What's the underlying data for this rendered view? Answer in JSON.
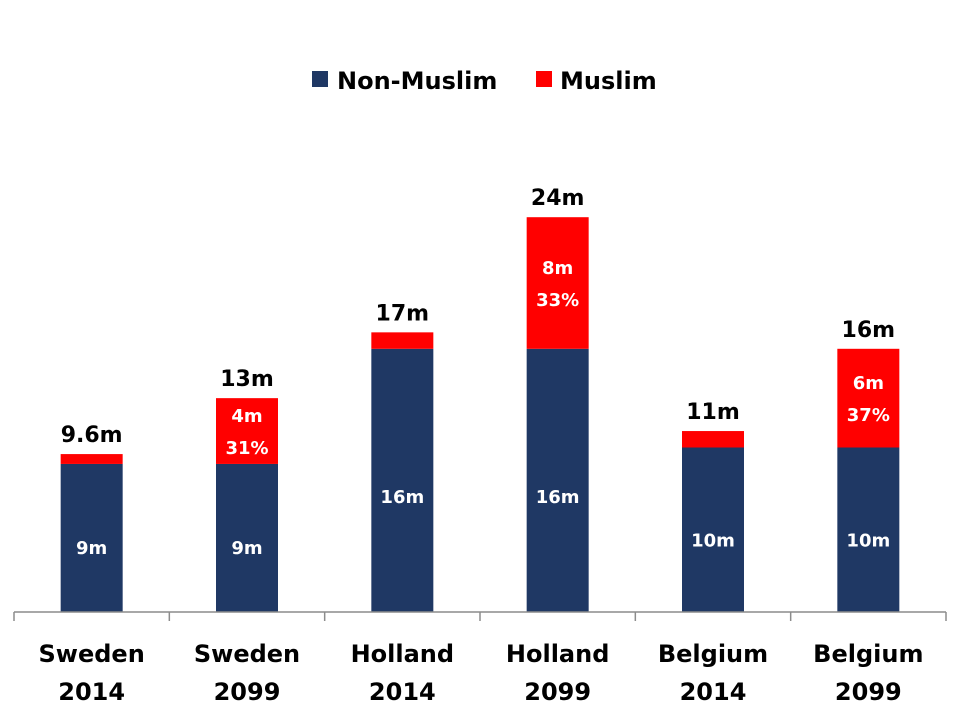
{
  "chart_data": {
    "type": "bar",
    "stacked": true,
    "categories": [
      [
        "Sweden",
        "2014"
      ],
      [
        "Sweden",
        "2099"
      ],
      [
        "Holland",
        "2014"
      ],
      [
        "Holland",
        "2099"
      ],
      [
        "Belgium",
        "2014"
      ],
      [
        "Belgium",
        "2099"
      ]
    ],
    "series": [
      {
        "name": "Non-Muslim",
        "color": "#1f3864",
        "values": [
          9,
          9,
          16,
          16,
          10,
          10
        ],
        "labels": [
          [
            "9m"
          ],
          [
            "9m"
          ],
          [
            "16m"
          ],
          [
            "16m"
          ],
          [
            "10m"
          ],
          [
            "10m"
          ]
        ]
      },
      {
        "name": "Muslim",
        "color": "#ff0000",
        "values": [
          0.6,
          4,
          1,
          8,
          1,
          6
        ],
        "labels": [
          [],
          [
            "4m",
            "31%"
          ],
          [],
          [
            "8m",
            "33%"
          ],
          [],
          [
            "6m",
            "37%"
          ]
        ]
      }
    ],
    "totals": [
      "9.6m",
      "13m",
      "17m",
      "24m",
      "11m",
      "16m"
    ],
    "ylim": [
      0,
      27
    ],
    "legend_position": "top-center",
    "grid": false
  }
}
